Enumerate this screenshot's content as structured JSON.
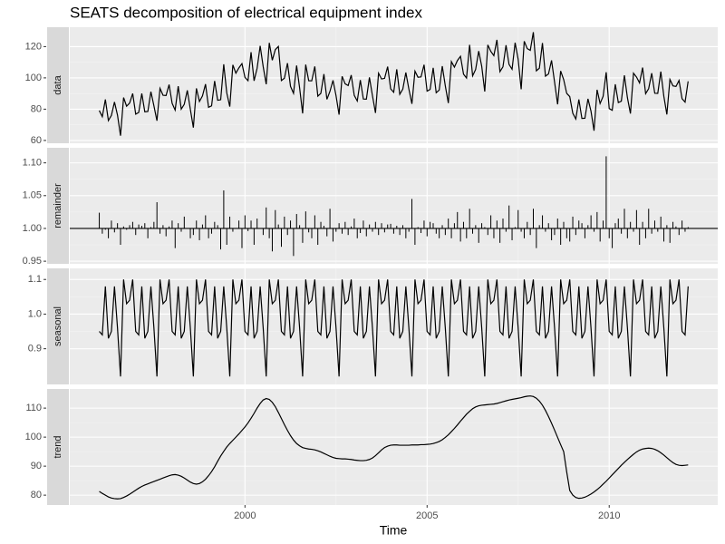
{
  "chart_data": {
    "type": "line",
    "title": "SEATS decomposition of electrical equipment index",
    "xlabel": "Time",
    "grid": true,
    "color": "#000000",
    "xlim": [
      1995.19,
      2012.98
    ],
    "xticks": [
      2000,
      2005,
      2010
    ],
    "x": [
      1996,
      1996.083,
      1996.167,
      1996.25,
      1996.333,
      1996.417,
      1996.5,
      1996.583,
      1996.667,
      1996.75,
      1996.833,
      1996.917,
      1997,
      1997.083,
      1997.167,
      1997.25,
      1997.333,
      1997.417,
      1997.5,
      1997.583,
      1997.667,
      1997.75,
      1997.833,
      1997.917,
      1998,
      1998.083,
      1998.167,
      1998.25,
      1998.333,
      1998.417,
      1998.5,
      1998.583,
      1998.667,
      1998.75,
      1998.833,
      1998.917,
      1999,
      1999.083,
      1999.167,
      1999.25,
      1999.333,
      1999.417,
      1999.5,
      1999.583,
      1999.667,
      1999.75,
      1999.833,
      1999.917,
      2000,
      2000.083,
      2000.167,
      2000.25,
      2000.333,
      2000.417,
      2000.5,
      2000.583,
      2000.667,
      2000.75,
      2000.833,
      2000.917,
      2001,
      2001.083,
      2001.167,
      2001.25,
      2001.333,
      2001.417,
      2001.5,
      2001.583,
      2001.667,
      2001.75,
      2001.833,
      2001.917,
      2002,
      2002.083,
      2002.167,
      2002.25,
      2002.333,
      2002.417,
      2002.5,
      2002.583,
      2002.667,
      2002.75,
      2002.833,
      2002.917,
      2003,
      2003.083,
      2003.167,
      2003.25,
      2003.333,
      2003.417,
      2003.5,
      2003.583,
      2003.667,
      2003.75,
      2003.833,
      2003.917,
      2004,
      2004.083,
      2004.167,
      2004.25,
      2004.333,
      2004.417,
      2004.5,
      2004.583,
      2004.667,
      2004.75,
      2004.833,
      2004.917,
      2005,
      2005.083,
      2005.167,
      2005.25,
      2005.333,
      2005.417,
      2005.5,
      2005.583,
      2005.667,
      2005.75,
      2005.833,
      2005.917,
      2006,
      2006.083,
      2006.167,
      2006.25,
      2006.333,
      2006.417,
      2006.5,
      2006.583,
      2006.667,
      2006.75,
      2006.833,
      2006.917,
      2007,
      2007.083,
      2007.167,
      2007.25,
      2007.333,
      2007.417,
      2007.5,
      2007.583,
      2007.667,
      2007.75,
      2007.833,
      2007.917,
      2008,
      2008.083,
      2008.167,
      2008.25,
      2008.333,
      2008.417,
      2008.5,
      2008.583,
      2008.667,
      2008.75,
      2008.833,
      2008.917,
      2009,
      2009.083,
      2009.167,
      2009.25,
      2009.333,
      2009.417,
      2009.5,
      2009.583,
      2009.667,
      2009.75,
      2009.833,
      2009.917,
      2010,
      2010.083,
      2010.167,
      2010.25,
      2010.333,
      2010.417,
      2010.5,
      2010.583,
      2010.667,
      2010.75,
      2010.833,
      2010.917,
      2011,
      2011.083,
      2011.167,
      2011.25,
      2011.333,
      2011.417,
      2011.5,
      2011.583,
      2011.667,
      2011.75,
      2011.833,
      2011.917,
      2012,
      2012.083,
      2012.167
    ],
    "panels": [
      {
        "name": "data",
        "type": "line",
        "ylim": [
          58.2,
          132.4
        ],
        "yticks": [
          60,
          80,
          100,
          120
        ],
        "values": [
          79.1,
          75.2,
          86.2,
          72.7,
          76.0,
          84.6,
          76.2,
          63.0,
          87.4,
          81.9,
          83.9,
          90.0,
          76.8,
          77.9,
          90.0,
          78.3,
          78.5,
          91.2,
          82.1,
          72.6,
          93.3,
          88.9,
          88.7,
          95.7,
          83.7,
          79.4,
          94.7,
          80.0,
          83.1,
          92.0,
          79.9,
          68.2,
          93.3,
          84.9,
          88.5,
          96.0,
          81.2,
          82.1,
          98.0,
          85.7,
          86.0,
          108.7,
          90.4,
          81.6,
          108.3,
          103.0,
          106.4,
          109.1,
          100.3,
          98.2,
          116.4,
          98.1,
          106.1,
          120.5,
          107.2,
          95.9,
          122.4,
          111.3,
          118.1,
          120.1,
          98.3,
          99.8,
          109.4,
          94.6,
          90.1,
          107.9,
          93.6,
          77.3,
          108.5,
          98.2,
          98.1,
          107.3,
          88.3,
          90.1,
          102.4,
          86.3,
          91.4,
          98.4,
          88.6,
          76.5,
          101.0,
          96.2,
          95.1,
          101.8,
          88.8,
          85.2,
          98.6,
          86.5,
          86.4,
          100.3,
          88.6,
          77.6,
          103.0,
          99.3,
          99.7,
          107.2,
          93.0,
          90.8,
          105.5,
          89.5,
          92.8,
          103.4,
          92.8,
          83.4,
          104.3,
          100.4,
          100.6,
          108.4,
          91.5,
          92.6,
          106.4,
          90.5,
          92.2,
          107.5,
          94.9,
          83.9,
          110.4,
          106.9,
          111.1,
          113.8,
          102.4,
          99.9,
          121.1,
          101.3,
          105.4,
          117.1,
          107.4,
          91.3,
          121.1,
          116.9,
          114.2,
          124.3,
          104.0,
          107.1,
          120.9,
          108.6,
          105.5,
          122.5,
          111.9,
          92.7,
          123.4,
          118.7,
          117.6,
          129.2,
          104.5,
          106.2,
          122.3,
          101.1,
          102.5,
          111.2,
          97.3,
          83.1,
          104.4,
          98.9,
          90.1,
          88.0,
          77.4,
          73.7,
          86.2,
          74.1,
          74.2,
          86.6,
          78.7,
          66.2,
          92.4,
          83.6,
          88.2,
          103.6,
          80.4,
          79.3,
          95.9,
          84.2,
          85.1,
          101.6,
          87.3,
          77.2,
          103.0,
          100.5,
          96.8,
          106.6,
          89.9,
          93.1,
          103.0,
          90.2,
          90.1,
          104.0,
          88.2,
          76.6,
          99.0,
          94.9,
          94.5,
          98.3,
          86.7,
          84.5,
          97.8
        ]
      },
      {
        "name": "remainder",
        "type": "bar",
        "baseline": 1,
        "ylim": [
          0.946,
          1.123
        ],
        "yticks": [
          0.95,
          {
            "value": 1,
            "label": "1.00"
          },
          1.05,
          {
            "value": 1.1,
            "label": "1.10"
          }
        ],
        "values": [
          1.024,
          0.992,
          0.998,
          0.985,
          1.012,
          0.994,
          1.008,
          0.975,
          1.003,
          0.998,
          1.005,
          1.01,
          0.99,
          1.006,
          1.004,
          1.008,
          0.985,
          1.002,
          1.01,
          1.04,
          0.992,
          1.005,
          0.988,
          1.003,
          1.012,
          0.97,
          1.008,
          0.995,
          1.018,
          1.0,
          0.985,
          0.99,
          1.012,
          0.982,
          1.006,
          1.02,
          0.985,
          0.992,
          1.01,
          1.005,
          0.968,
          1.058,
          0.975,
          1.018,
          0.995,
          1.0,
          1.012,
          0.97,
          1.02,
          0.996,
          1.012,
          0.975,
          1.015,
          1.0,
          0.99,
          1.032,
          0.985,
          0.965,
          1.028,
          1.006,
          0.972,
          1.018,
          0.99,
          1.012,
          0.958,
          1.022,
          1.005,
          0.978,
          1.026,
          0.994,
          0.985,
          1.02,
          0.975,
          1.01,
          1.004,
          0.988,
          1.03,
          0.98,
          0.995,
          1.008,
          0.992,
          1.01,
          0.99,
          1.003,
          1.015,
          0.985,
          0.993,
          1.012,
          0.988,
          1.006,
          0.995,
          1.01,
          0.99,
          1.008,
          0.994,
          1.006,
          1.007,
          0.992,
          1.004,
          0.99,
          1.005,
          0.985,
          0.995,
          1.045,
          0.975,
          1.002,
          0.993,
          1.012,
          0.988,
          1.01,
          1.008,
          0.992,
          0.985,
          1.005,
          0.99,
          1.015,
          0.985,
          1.008,
          1.025,
          0.98,
          1.01,
          0.985,
          1.03,
          0.992,
          1.005,
          0.978,
          1.008,
          1.002,
          0.99,
          1.02,
          0.985,
          1.012,
          0.978,
          1.015,
          0.995,
          1.035,
          0.982,
          1.002,
          1.028,
          0.995,
          0.985,
          1.01,
          0.99,
          1.03,
          0.97,
          1.005,
          1.02,
          0.995,
          1.008,
          0.982,
          0.99,
          1.015,
          0.975,
          1.01,
          0.985,
          0.98,
          1.018,
          0.99,
          1.012,
          1.008,
          0.985,
          1.005,
          1.02,
          0.995,
          1.025,
          0.98,
          1.012,
          1.11,
          0.985,
          0.97,
          1.008,
          1.015,
          0.992,
          1.03,
          0.985,
          1.01,
          0.995,
          1.028,
          0.975,
          1.01,
          0.985,
          1.03,
          0.992,
          1.012,
          0.995,
          1.018,
          0.98,
          1.005,
          0.978,
          1.01,
          1.003,
          0.99,
          1.012,
          0.995,
          1.002
        ]
      },
      {
        "name": "seasonal",
        "type": "line",
        "ylim": [
          0.797,
          1.132
        ],
        "yticks": [
          0.9,
          {
            "value": 1,
            "label": "1.0"
          },
          1.1
        ],
        "values": [
          0.95,
          0.94,
          1.08,
          0.93,
          0.95,
          1.08,
          0.96,
          0.82,
          1.1,
          1.03,
          1.04,
          1.1,
          0.95,
          0.94,
          1.08,
          0.93,
          0.95,
          1.08,
          0.96,
          0.82,
          1.1,
          1.03,
          1.04,
          1.1,
          0.95,
          0.94,
          1.08,
          0.93,
          0.95,
          1.08,
          0.96,
          0.82,
          1.1,
          1.03,
          1.04,
          1.1,
          0.95,
          0.94,
          1.08,
          0.93,
          0.95,
          1.08,
          0.96,
          0.82,
          1.1,
          1.03,
          1.04,
          1.1,
          0.95,
          0.94,
          1.08,
          0.93,
          0.95,
          1.08,
          0.96,
          0.82,
          1.1,
          1.03,
          1.04,
          1.1,
          0.95,
          0.94,
          1.08,
          0.93,
          0.95,
          1.08,
          0.96,
          0.82,
          1.1,
          1.03,
          1.04,
          1.1,
          0.95,
          0.94,
          1.08,
          0.93,
          0.95,
          1.08,
          0.96,
          0.82,
          1.1,
          1.03,
          1.04,
          1.1,
          0.95,
          0.94,
          1.08,
          0.93,
          0.95,
          1.08,
          0.96,
          0.82,
          1.1,
          1.03,
          1.04,
          1.1,
          0.95,
          0.94,
          1.08,
          0.93,
          0.95,
          1.08,
          0.96,
          0.82,
          1.1,
          1.03,
          1.04,
          1.1,
          0.95,
          0.94,
          1.08,
          0.93,
          0.95,
          1.08,
          0.96,
          0.82,
          1.1,
          1.03,
          1.04,
          1.1,
          0.95,
          0.94,
          1.08,
          0.93,
          0.95,
          1.08,
          0.96,
          0.82,
          1.1,
          1.03,
          1.04,
          1.1,
          0.95,
          0.94,
          1.08,
          0.93,
          0.95,
          1.08,
          0.96,
          0.82,
          1.1,
          1.03,
          1.04,
          1.1,
          0.95,
          0.94,
          1.08,
          0.93,
          0.95,
          1.08,
          0.96,
          0.82,
          1.1,
          1.03,
          1.04,
          1.1,
          0.95,
          0.94,
          1.08,
          0.93,
          0.95,
          1.08,
          0.96,
          0.82,
          1.1,
          1.03,
          1.04,
          1.1,
          0.95,
          0.94,
          1.08,
          0.93,
          0.95,
          1.08,
          0.96,
          0.82,
          1.1,
          1.03,
          1.04,
          1.1,
          0.95,
          0.94,
          1.08,
          0.93,
          0.95,
          1.08,
          0.96,
          0.82,
          1.1,
          1.03,
          1.04,
          1.1,
          0.95,
          0.94,
          1.08
        ]
      },
      {
        "name": "trend",
        "type": "line",
        "ylim": [
          76.6,
          116.6
        ],
        "yticks": [
          80,
          90,
          100,
          110
        ],
        "values": [
          81.3,
          80.6,
          80.0,
          79.4,
          79.0,
          78.8,
          78.7,
          78.8,
          79.2,
          79.7,
          80.3,
          81.0,
          81.7,
          82.4,
          83.0,
          83.5,
          83.9,
          84.3,
          84.7,
          85.1,
          85.5,
          85.9,
          86.3,
          86.7,
          87.0,
          87.1,
          86.9,
          86.5,
          85.9,
          85.2,
          84.5,
          84.0,
          83.8,
          84.0,
          84.6,
          85.5,
          86.7,
          88.1,
          89.8,
          91.7,
          93.5,
          95.1,
          96.6,
          97.8,
          98.9,
          100.0,
          101.1,
          102.3,
          103.5,
          104.9,
          106.5,
          108.2,
          110.0,
          111.6,
          112.8,
          113.3,
          113.0,
          112.0,
          110.5,
          108.5,
          106.4,
          104.3,
          102.3,
          100.5,
          99.0,
          97.8,
          97.0,
          96.4,
          96.1,
          95.9,
          95.8,
          95.6,
          95.3,
          94.9,
          94.4,
          93.9,
          93.4,
          93.0,
          92.7,
          92.6,
          92.5,
          92.5,
          92.4,
          92.3,
          92.1,
          92.0,
          91.9,
          91.9,
          92.0,
          92.3,
          92.8,
          93.6,
          94.6,
          95.6,
          96.4,
          96.9,
          97.2,
          97.3,
          97.3,
          97.2,
          97.2,
          97.2,
          97.2,
          97.3,
          97.3,
          97.3,
          97.4,
          97.4,
          97.5,
          97.6,
          97.8,
          98.1,
          98.5,
          99.1,
          99.9,
          100.8,
          101.9,
          103.0,
          104.2,
          105.5,
          106.7,
          107.9,
          108.9,
          109.8,
          110.4,
          110.8,
          111.0,
          111.1,
          111.2,
          111.3,
          111.4,
          111.6,
          111.9,
          112.2,
          112.5,
          112.8,
          113.0,
          113.2,
          113.4,
          113.6,
          113.9,
          114.1,
          114.2,
          114.0,
          113.4,
          112.4,
          111.0,
          109.2,
          107.1,
          104.8,
          102.4,
          99.9,
          97.4,
          95.0,
          88.0,
          81.6,
          80.0,
          79.2,
          78.9,
          79.0,
          79.3,
          79.8,
          80.4,
          81.1,
          81.9,
          82.8,
          83.8,
          84.8,
          85.9,
          87.0,
          88.1,
          89.2,
          90.3,
          91.3,
          92.3,
          93.2,
          94.1,
          94.9,
          95.5,
          95.9,
          96.1,
          96.2,
          96.1,
          95.8,
          95.3,
          94.6,
          93.8,
          92.9,
          92.0,
          91.2,
          90.6,
          90.3,
          90.2,
          90.3,
          90.4
        ]
      }
    ]
  }
}
